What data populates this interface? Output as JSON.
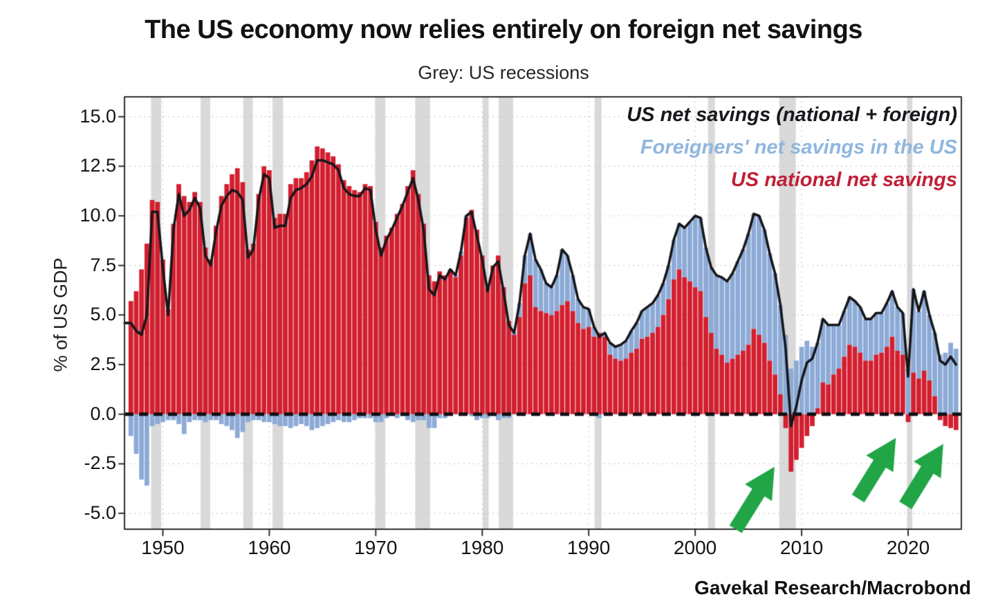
{
  "title": "The US economy now relies entirely on foreign net savings",
  "subtitle": "Grey: US recessions",
  "attribution": "Gavekal Research/Macrobond",
  "y_axis": {
    "label": "% of US GDP",
    "ticks": [
      {
        "value": 15.0,
        "label": "15.0"
      },
      {
        "value": 12.5,
        "label": "12.5"
      },
      {
        "value": 10.0,
        "label": "10.0"
      },
      {
        "value": 7.5,
        "label": "7.5"
      },
      {
        "value": 5.0,
        "label": "5.0"
      },
      {
        "value": 2.5,
        "label": "2.5"
      },
      {
        "value": 0.0,
        "label": "0.0"
      },
      {
        "value": -2.5,
        "label": "-2.5"
      },
      {
        "value": -5.0,
        "label": "-5.0"
      }
    ]
  },
  "x_axis": {
    "ticks": [
      {
        "value": 1950,
        "label": "1950"
      },
      {
        "value": 1960,
        "label": "1960"
      },
      {
        "value": 1970,
        "label": "1970"
      },
      {
        "value": 1980,
        "label": "1980"
      },
      {
        "value": 1990,
        "label": "1990"
      },
      {
        "value": 2000,
        "label": "2000"
      },
      {
        "value": 2010,
        "label": "2010"
      },
      {
        "value": 2020,
        "label": "2020"
      }
    ]
  },
  "legend": [
    {
      "label": "US net savings (national + foreign)",
      "color": "#17181c"
    },
    {
      "label": "Foreigners' net savings in the US",
      "color": "#8fb6de"
    },
    {
      "label": "US national net savings",
      "color": "#c02038"
    }
  ],
  "colors": {
    "national_bar": "#d21f2f",
    "foreign_bar": "#8caad6",
    "total_line": "#16161a",
    "recession_band": "#d9d9d9",
    "gridline": "#cccccc",
    "axis": "#2f2f2f",
    "zero_line": "#101014",
    "arrow_green": "#21a546",
    "background": "#ffffff"
  },
  "chart_data": {
    "type": "bar",
    "subtype": "stacked bars (semi-annual) with total line overlay",
    "x_start": 1947.0,
    "x_step": 0.5,
    "xlim": [
      1946.4,
      2025.0
    ],
    "ylim": [
      -5.8,
      16.0
    ],
    "grid": "dotted horizontal at every 2.5, dotted vertical at decades",
    "legend_position": "top-right inside plot, text only",
    "series": [
      {
        "name": "US national net savings",
        "color": "#d21f2f",
        "values": [
          5.7,
          6.2,
          7.3,
          8.6,
          10.8,
          10.7,
          7.8,
          5.3,
          9.6,
          11.6,
          11.0,
          10.7,
          11.2,
          10.7,
          8.4,
          7.8,
          9.5,
          11.0,
          11.6,
          12.1,
          12.4,
          11.7,
          8.3,
          8.6,
          11.1,
          12.5,
          12.3,
          9.9,
          10.1,
          10.1,
          11.6,
          11.9,
          11.9,
          12.2,
          12.8,
          13.5,
          13.4,
          13.2,
          13.0,
          12.6,
          11.8,
          11.5,
          11.3,
          11.2,
          11.6,
          11.5,
          9.7,
          8.4,
          9.0,
          9.4,
          10.1,
          10.6,
          11.5,
          12.3,
          11.1,
          9.6,
          7.0,
          6.7,
          7.2,
          7.0,
          7.3,
          6.9,
          8.0,
          9.9,
          10.3,
          9.3,
          8.0,
          6.4,
          7.5,
          8.0,
          6.4,
          4.7,
          4.0,
          4.9,
          6.6,
          7.0,
          5.4,
          5.2,
          5.1,
          5.0,
          5.2,
          5.5,
          5.7,
          5.2,
          4.6,
          4.3,
          4.4,
          3.9,
          4.1,
          3.9,
          3.0,
          2.8,
          2.7,
          2.8,
          3.1,
          3.3,
          3.8,
          3.9,
          4.1,
          4.4,
          5.0,
          5.8,
          6.8,
          7.3,
          6.9,
          6.7,
          6.4,
          6.2,
          4.9,
          4.1,
          3.3,
          3.0,
          2.6,
          2.8,
          3.0,
          3.2,
          3.5,
          4.3,
          4.0,
          3.6,
          2.7,
          2.0,
          1.0,
          -0.7,
          -2.9,
          -2.3,
          -1.7,
          -1.1,
          -0.6,
          0.3,
          1.6,
          1.5,
          2.0,
          2.3,
          2.9,
          3.5,
          3.4,
          3.1,
          2.7,
          2.7,
          3.0,
          3.1,
          3.4,
          3.9,
          3.2,
          3.0,
          -0.4,
          2.1,
          1.8,
          2.2,
          1.7,
          0.9,
          -0.3,
          -0.6,
          -0.7,
          -0.8
        ]
      },
      {
        "name": "Foreigners' net savings in the US",
        "color": "#8caad6",
        "values": [
          -1.1,
          -2.0,
          -3.3,
          -3.6,
          -0.6,
          -0.5,
          -0.4,
          -0.3,
          -0.3,
          -0.5,
          -1.0,
          -0.4,
          -0.3,
          -0.3,
          -0.4,
          -0.3,
          -0.3,
          -0.5,
          -0.6,
          -0.8,
          -1.2,
          -0.9,
          -0.4,
          -0.3,
          -0.3,
          -0.4,
          -0.4,
          -0.5,
          -0.6,
          -0.6,
          -0.7,
          -0.6,
          -0.5,
          -0.6,
          -0.8,
          -0.7,
          -0.6,
          -0.5,
          -0.4,
          -0.3,
          -0.4,
          -0.4,
          -0.3,
          -0.2,
          -0.2,
          -0.2,
          -0.4,
          -0.4,
          -0.2,
          -0.1,
          -0.2,
          -0.1,
          -0.3,
          -0.4,
          -0.3,
          -0.3,
          -0.7,
          -0.7,
          -0.2,
          -0.2,
          0.0,
          0.1,
          0.2,
          0.1,
          -0.1,
          -0.3,
          -0.2,
          -0.2,
          -0.1,
          -0.3,
          -0.2,
          -0.2,
          0.1,
          0.7,
          1.4,
          2.1,
          2.4,
          2.1,
          1.5,
          1.4,
          1.8,
          2.8,
          2.3,
          1.8,
          1.2,
          1.1,
          0.9,
          0.5,
          -0.2,
          0.2,
          0.6,
          0.6,
          0.8,
          0.9,
          1.1,
          1.3,
          1.4,
          1.5,
          1.5,
          1.6,
          1.6,
          1.7,
          2.0,
          2.3,
          2.5,
          3.0,
          3.6,
          3.7,
          3.5,
          3.3,
          3.7,
          3.9,
          4.1,
          4.3,
          4.7,
          5.1,
          5.6,
          5.8,
          6.0,
          5.7,
          5.4,
          5.1,
          4.5,
          4.0,
          2.3,
          2.7,
          3.4,
          3.7,
          3.4,
          3.3,
          3.2,
          3.0,
          2.5,
          2.2,
          2.3,
          2.4,
          2.3,
          2.3,
          2.1,
          2.1,
          2.1,
          2.0,
          2.2,
          2.3,
          2.2,
          2.1,
          2.3,
          4.2,
          3.4,
          4.0,
          3.3,
          3.2,
          3.0,
          3.1,
          3.6,
          3.3
        ]
      }
    ],
    "line": {
      "name": "US net savings (national + foreign)",
      "color": "#16161a",
      "derived": "sum of the two bar series at each point"
    },
    "recessions": [
      [
        1948.9,
        1949.85
      ],
      [
        1953.55,
        1954.45
      ],
      [
        1957.55,
        1958.45
      ],
      [
        1960.3,
        1961.3
      ],
      [
        1969.95,
        1970.9
      ],
      [
        1973.7,
        1975.1
      ],
      [
        1980.05,
        1980.6
      ],
      [
        1981.55,
        1982.9
      ],
      [
        1990.55,
        1991.2
      ],
      [
        2001.2,
        2001.85
      ],
      [
        2007.9,
        2009.45
      ],
      [
        2019.9,
        2020.4
      ]
    ],
    "arrows": [
      {
        "from": [
          2003.8,
          -5.8
        ],
        "to": [
          2007.45,
          -2.65
        ]
      },
      {
        "from": [
          2015.3,
          -4.25
        ],
        "to": [
          2018.85,
          -1.2
        ]
      },
      {
        "from": [
          2019.75,
          -4.6
        ],
        "to": [
          2023.3,
          -1.5
        ]
      }
    ]
  }
}
